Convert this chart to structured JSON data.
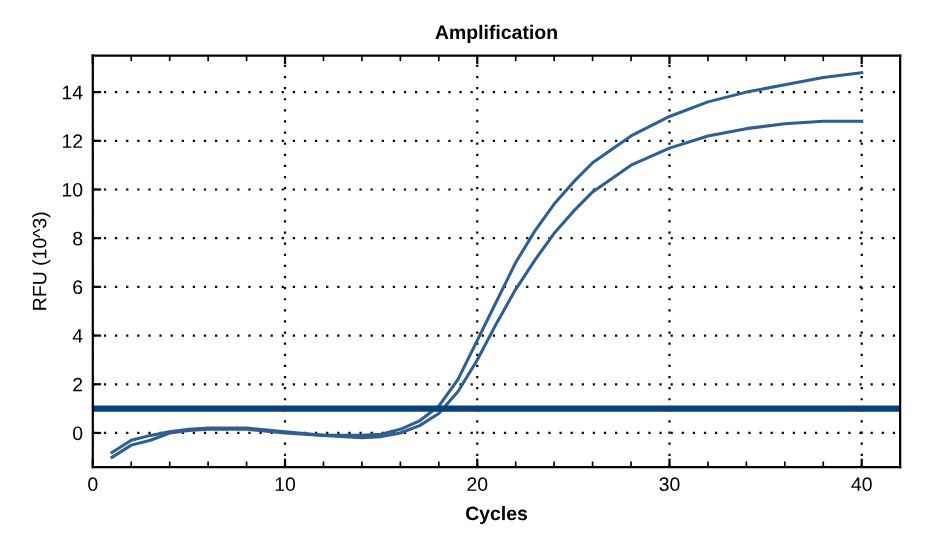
{
  "chart_data": {
    "type": "line",
    "title": "Amplification",
    "xlabel": "Cycles",
    "ylabel": "RFU (10^3)",
    "xlim": [
      0,
      42
    ],
    "xticks": [
      0,
      10,
      20,
      30,
      40
    ],
    "ylim": [
      -1.4,
      15.5
    ],
    "yticks": [
      0,
      2,
      4,
      6,
      8,
      10,
      12,
      14
    ],
    "grid": true,
    "line_style": "solid",
    "marker": "none",
    "series": [
      {
        "color": "#2f5f8f",
        "x": [
          1,
          2,
          3,
          4,
          5,
          6,
          8,
          10,
          12,
          14,
          15,
          16,
          17,
          18,
          19,
          20,
          21,
          22,
          23,
          24,
          25,
          26,
          28,
          30,
          32,
          34,
          36,
          38,
          40
        ],
        "values": [
          -0.8,
          -0.3,
          -0.1,
          0.05,
          0.15,
          0.2,
          0.2,
          0.05,
          -0.1,
          -0.1,
          -0.05,
          0.15,
          0.5,
          1.1,
          2.2,
          3.8,
          5.4,
          7.0,
          8.3,
          9.4,
          10.3,
          11.1,
          12.2,
          13.0,
          13.6,
          14.0,
          14.3,
          14.6,
          14.8
        ]
      },
      {
        "color": "#2f5f8f",
        "x": [
          1,
          2,
          3,
          4,
          5,
          6,
          8,
          10,
          12,
          14,
          15,
          16,
          17,
          18,
          19,
          20,
          21,
          22,
          23,
          24,
          25,
          26,
          28,
          30,
          32,
          34,
          36,
          38,
          40
        ],
        "values": [
          -1.0,
          -0.5,
          -0.3,
          0.0,
          0.1,
          0.15,
          0.15,
          0.0,
          -0.1,
          -0.2,
          -0.15,
          0.0,
          0.3,
          0.8,
          1.7,
          3.0,
          4.5,
          5.9,
          7.1,
          8.2,
          9.1,
          9.9,
          11.0,
          11.7,
          12.2,
          12.5,
          12.7,
          12.8,
          12.8
        ]
      }
    ],
    "ref_lines": [
      {
        "axis": "y",
        "value": 1.0,
        "color": "#0a3f7a",
        "line_style": "solid"
      }
    ]
  }
}
